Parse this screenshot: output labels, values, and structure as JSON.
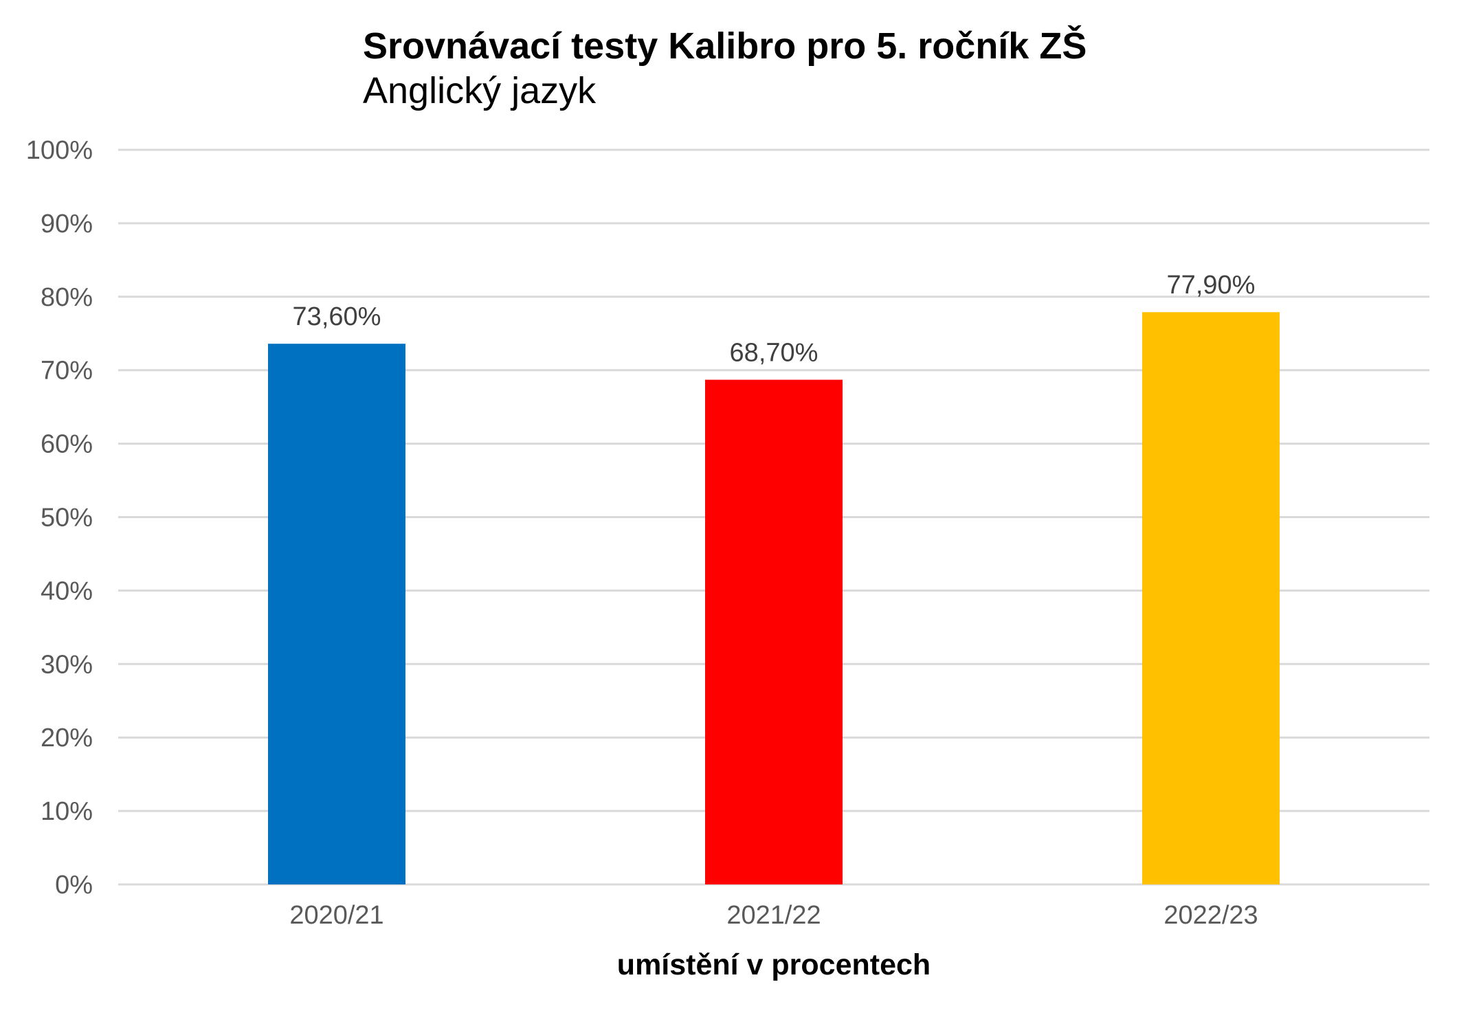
{
  "chart_data": {
    "type": "bar",
    "title": "Srovnávací testy Kalibro pro 5. ročník ZŠ",
    "subtitle": "Anglický jazyk",
    "xlabel": "umístění v procentech",
    "ylabel": "",
    "categories": [
      "2020/21",
      "2021/22",
      "2022/23"
    ],
    "values": [
      73.6,
      68.7,
      77.9
    ],
    "data_labels": [
      "73,60%",
      "68,70%",
      "77,90%"
    ],
    "bar_colors": [
      "#0070c0",
      "#ff0000",
      "#ffc000"
    ],
    "ylim": [
      0,
      100
    ],
    "yticks": [
      0,
      10,
      20,
      30,
      40,
      50,
      60,
      70,
      80,
      90,
      100
    ],
    "ytick_labels": [
      "0%",
      "10%",
      "20%",
      "30%",
      "40%",
      "50%",
      "60%",
      "70%",
      "80%",
      "90%",
      "100%"
    ],
    "grid": true,
    "legend": "none"
  }
}
